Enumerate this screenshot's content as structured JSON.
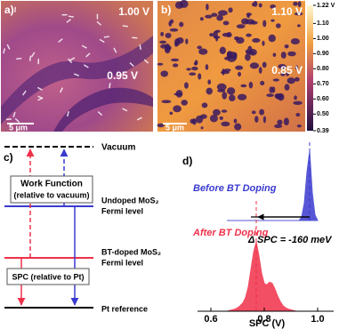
{
  "panel_a": {
    "label": "a)",
    "top_label": "1.00 V",
    "center_label": "0.95 V",
    "scale_bar": "5 μm"
  },
  "panel_b": {
    "label": "b)",
    "top_label": "1.10 V",
    "center_label": "0.85 V",
    "scale_bar": "5 μm",
    "colorbar_ticks": [
      {
        "value": 1.22,
        "label": "1.22 V"
      },
      {
        "value": 1.1,
        "label": "1.10"
      },
      {
        "value": 1,
        "label": "1.00"
      },
      {
        "value": 0.9,
        "label": "0.90"
      },
      {
        "value": 0.8,
        "label": "0.80"
      },
      {
        "value": 0.7,
        "label": "0.70"
      },
      {
        "value": 0.6,
        "label": "0.60"
      },
      {
        "value": 0.5,
        "label": "0.50"
      },
      0.39
    ]
  },
  "panel_c": {
    "label": "c)",
    "vacuum": "Vacuum",
    "work_function": "Work Function",
    "work_function_note": "(relative to vacuum)",
    "undoped": "Undoped MoS₂",
    "undoped_sub": "Fermi level",
    "doped": "BT-doped MoS₂",
    "doped_sub": "Fermi level",
    "spc": "SPC (relative to Pt)",
    "pt": "Pt reference"
  },
  "chart_data": {
    "type": "area",
    "label": "d)",
    "xlabel": "SPC (V)",
    "annotation": "Δ SPC = -160 meV",
    "xlim": [
      0.55,
      1.06
    ],
    "xticks": [
      0.6,
      0.8,
      {
        "value": 1,
        "label": "1.0"
      }
    ],
    "x": [
      0.66,
      0.67,
      0.68,
      0.69,
      0.7,
      0.71,
      0.72,
      0.73,
      0.74,
      0.75,
      0.76,
      0.77,
      0.78,
      0.79,
      0.8,
      0.81,
      0.82,
      0.83,
      0.84,
      0.85,
      0.86,
      0.87,
      0.88,
      0.89,
      0.9,
      0.91,
      0.92,
      0.93,
      0.94,
      0.95,
      0.96,
      0.97,
      0.98,
      0.99,
      1.0
    ],
    "series": [
      {
        "name": "Before BT Doping",
        "color": "#3a3ad0",
        "values": [
          0,
          0,
          0,
          0,
          0,
          0,
          0,
          0,
          0,
          0,
          0,
          0,
          0,
          0,
          0,
          0,
          0,
          0,
          0,
          0,
          0,
          0,
          0,
          0,
          0,
          0,
          0,
          0,
          5,
          25,
          70,
          100,
          40,
          8,
          0
        ]
      },
      {
        "name": "After BT Doping",
        "color": "#f0304a",
        "values": [
          0,
          1,
          2,
          3,
          5,
          8,
          12,
          20,
          35,
          60,
          85,
          100,
          80,
          55,
          40,
          38,
          42,
          40,
          32,
          22,
          14,
          8,
          5,
          3,
          2,
          1,
          0,
          0,
          0,
          0,
          0,
          0,
          0,
          0,
          0
        ]
      }
    ]
  }
}
